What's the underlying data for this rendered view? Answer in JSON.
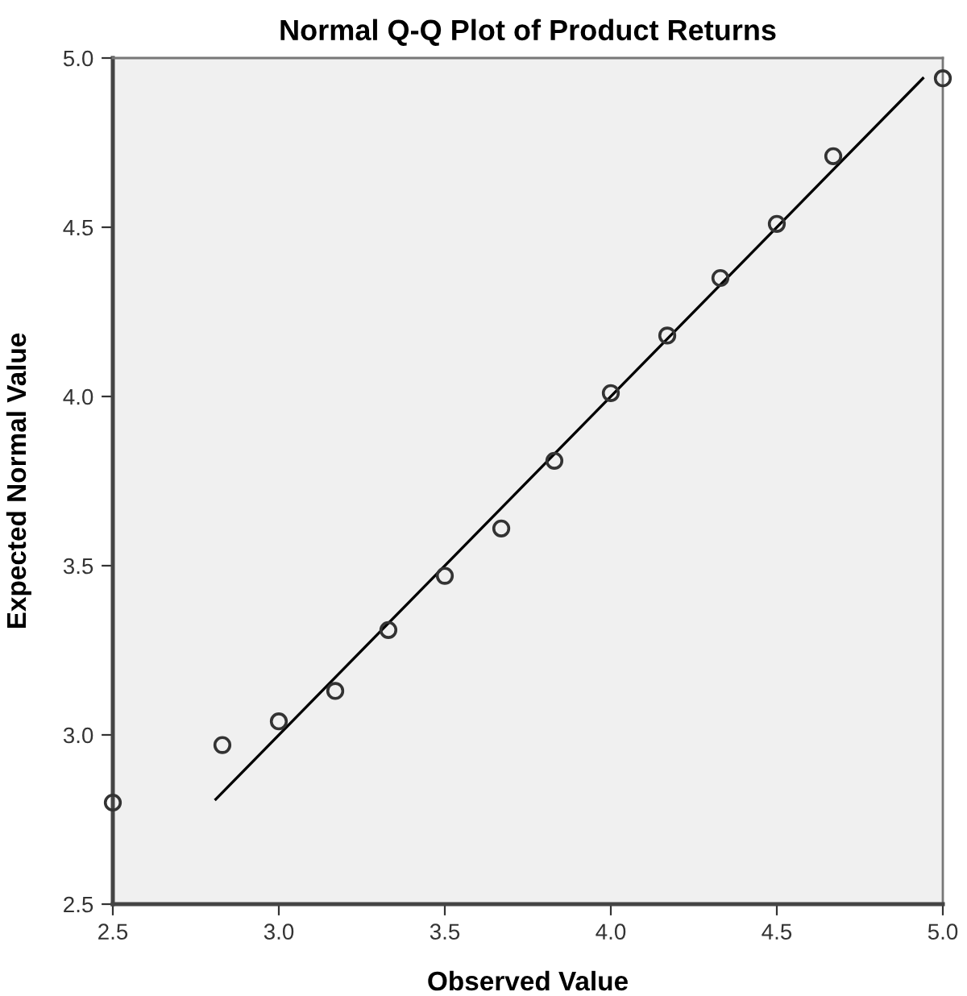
{
  "chart_data": {
    "type": "scatter",
    "title": "Normal Q-Q Plot of Product Returns",
    "xlabel": "Observed Value",
    "ylabel": "Expected Normal Value",
    "xlim": [
      2.5,
      5.0
    ],
    "ylim": [
      2.5,
      5.0
    ],
    "xticks": [
      {
        "value": 2.5,
        "label": "2.5"
      },
      {
        "value": 3.0,
        "label": "3.0"
      },
      {
        "value": 3.5,
        "label": "3.5"
      },
      {
        "value": 4.0,
        "label": "4.0"
      },
      {
        "value": 4.5,
        "label": "4.5"
      },
      {
        "value": 5.0,
        "label": "5.0"
      }
    ],
    "yticks": [
      {
        "value": 2.5,
        "label": "2.5"
      },
      {
        "value": 3.0,
        "label": "3.0"
      },
      {
        "value": 3.5,
        "label": "3.5"
      },
      {
        "value": 4.0,
        "label": "4.0"
      },
      {
        "value": 4.5,
        "label": "4.5"
      },
      {
        "value": 5.0,
        "label": "5.0"
      }
    ],
    "grid": false,
    "legend": false,
    "series": [
      {
        "marker": "circle",
        "color": "#333333",
        "x": [
          2.5,
          2.83,
          3.0,
          3.17,
          3.33,
          3.5,
          3.67,
          3.83,
          4.0,
          4.17,
          4.33,
          4.5,
          4.67,
          5.0
        ],
        "values": [
          2.8,
          2.97,
          3.04,
          3.13,
          3.31,
          3.47,
          3.61,
          3.81,
          4.01,
          4.18,
          4.35,
          4.51,
          4.71,
          4.94
        ]
      },
      {
        "type": "line",
        "marker": "none",
        "line_style": "solid",
        "color": "#000000",
        "x": [
          2.81,
          4.94
        ],
        "values": [
          2.81,
          4.94
        ]
      }
    ]
  }
}
